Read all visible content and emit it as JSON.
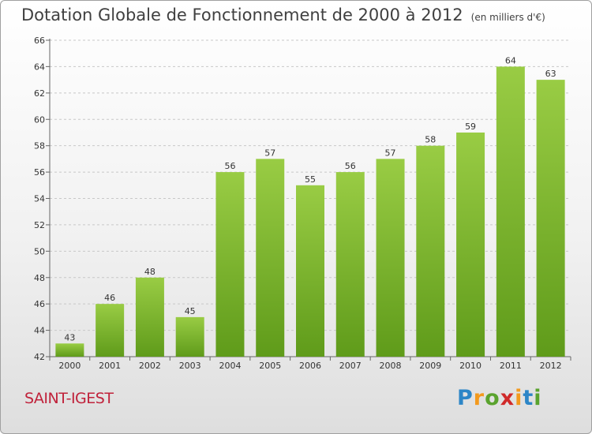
{
  "chart_data": {
    "type": "bar",
    "title": "Dotation Globale de Fonctionnement de 2000 à 2012",
    "unit": "(en milliers d'€)",
    "categories": [
      "2000",
      "2001",
      "2002",
      "2003",
      "2004",
      "2005",
      "2006",
      "2007",
      "2008",
      "2009",
      "2010",
      "2011",
      "2012"
    ],
    "values": [
      43,
      46,
      48,
      45,
      56,
      57,
      55,
      56,
      57,
      58,
      59,
      64,
      63
    ],
    "ylim": [
      42,
      66
    ],
    "yticks": [
      42,
      44,
      46,
      48,
      50,
      52,
      54,
      56,
      58,
      60,
      62,
      64,
      66
    ],
    "xlabel": "",
    "ylabel": "",
    "grid": true,
    "bar_color_top": "#99cc44",
    "bar_color_bottom": "#5f9b1a"
  },
  "commune": "SAINT-IGEST",
  "logo": {
    "letters": [
      "P",
      "r",
      "o",
      "x",
      "i",
      "t",
      "i"
    ],
    "colors": [
      "#2d86c7",
      "#f39a1e",
      "#5aa32e",
      "#d02a2a",
      "#f39a1e",
      "#2d86c7",
      "#5aa32e"
    ]
  }
}
